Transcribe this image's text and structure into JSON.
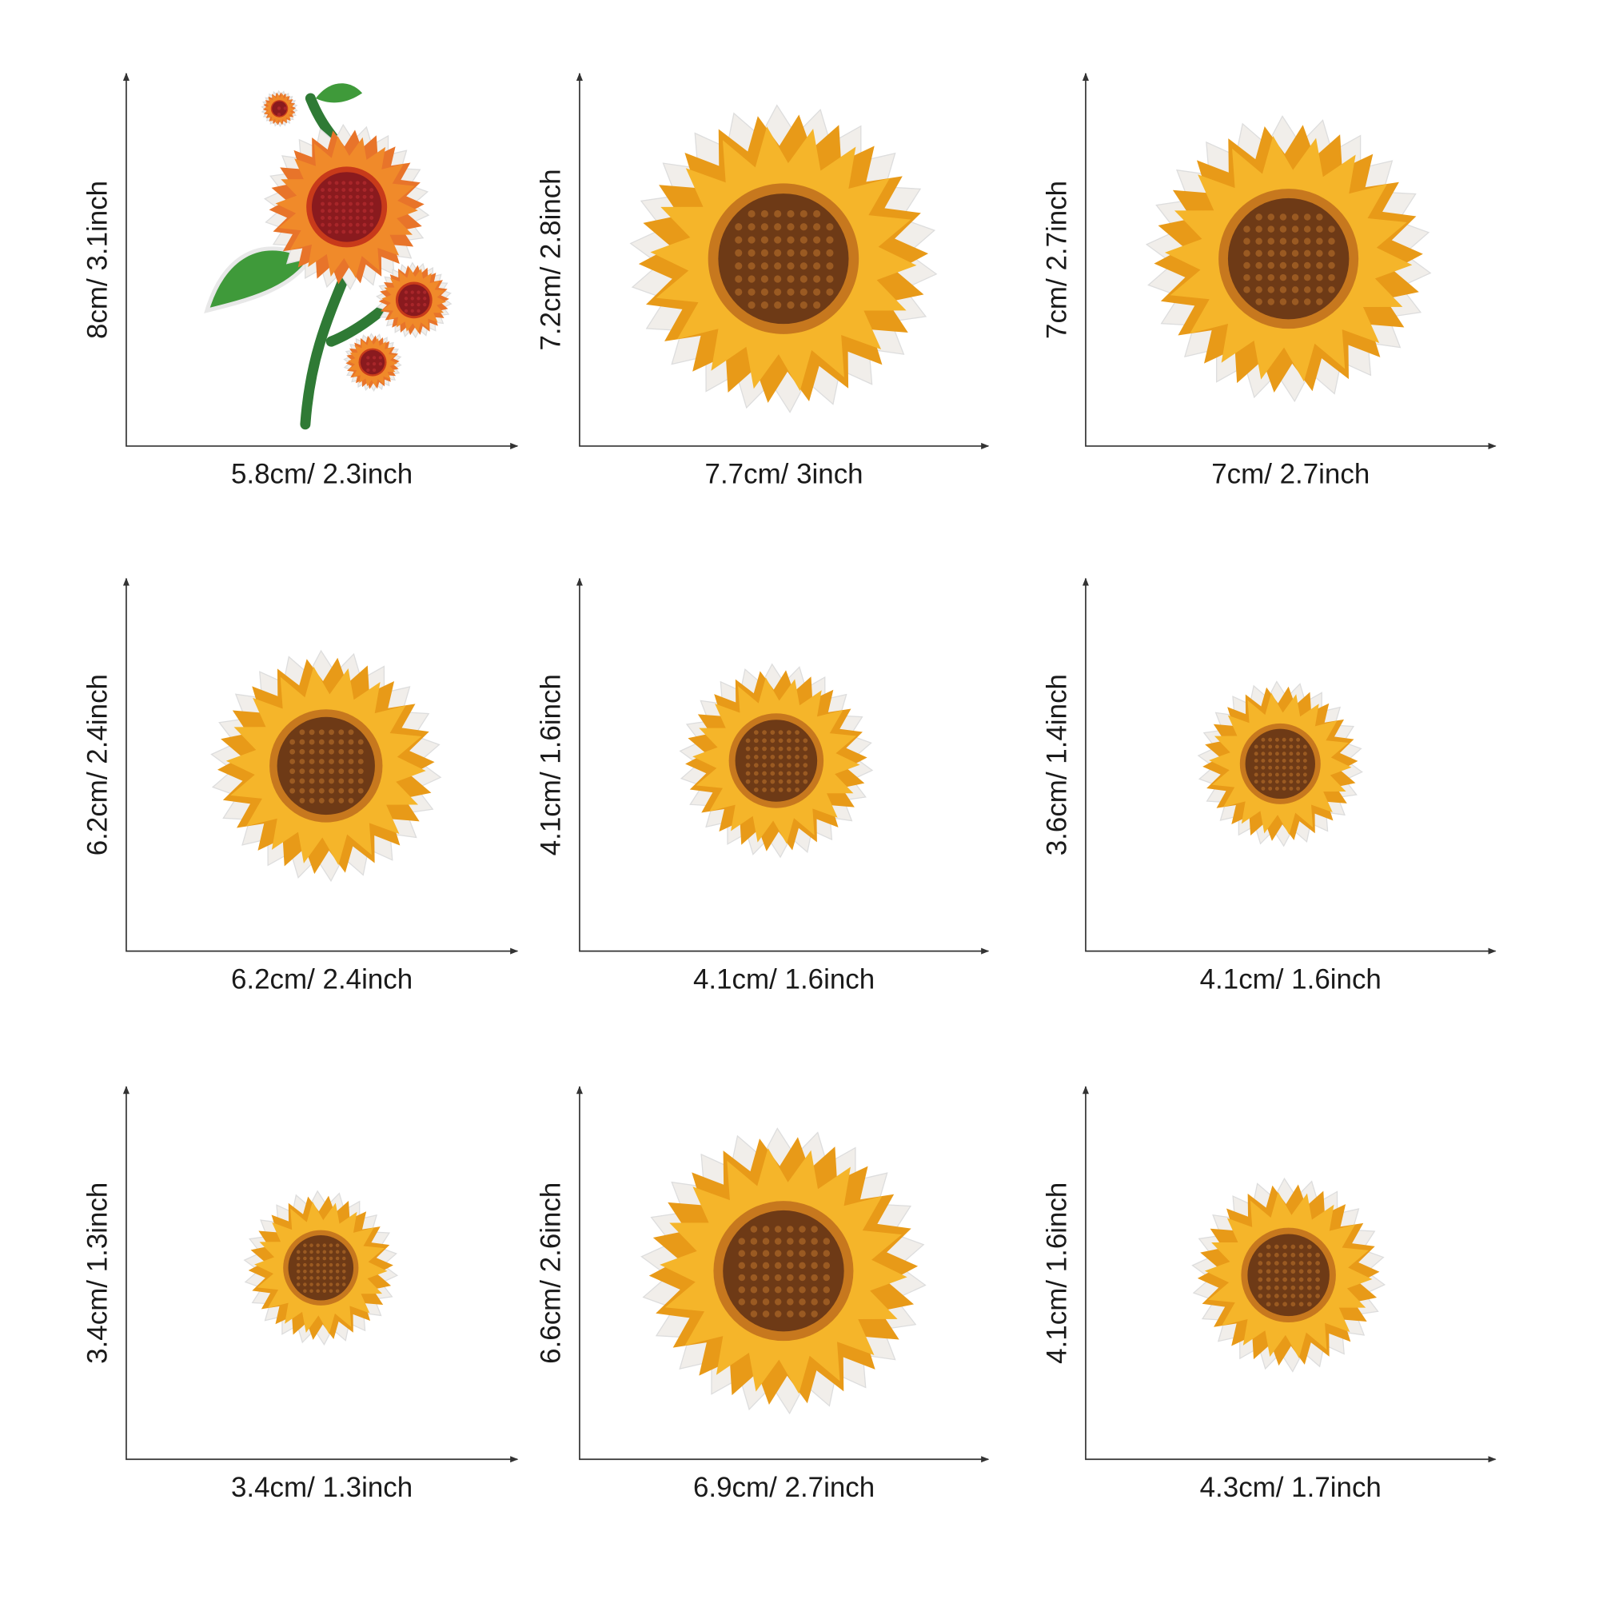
{
  "panels": [
    {
      "height_label": "8cm/ 3.1inch",
      "width_label": "5.8cm/ 2.3inch"
    },
    {
      "height_label": "7.2cm/ 2.8inch",
      "width_label": "7.7cm/ 3inch"
    },
    {
      "height_label": "7cm/ 2.7inch",
      "width_label": "7cm/ 2.7inch"
    },
    {
      "height_label": "6.2cm/ 2.4inch",
      "width_label": "6.2cm/ 2.4inch"
    },
    {
      "height_label": "4.1cm/ 1.6inch",
      "width_label": "4.1cm/ 1.6inch"
    },
    {
      "height_label": "3.6cm/ 1.4inch",
      "width_label": "4.1cm/ 1.6inch"
    },
    {
      "height_label": "3.4cm/ 1.3inch",
      "width_label": "3.4cm/ 1.3inch"
    },
    {
      "height_label": "6.6cm/ 2.6inch",
      "width_label": "6.9cm/ 2.7inch"
    },
    {
      "height_label": "4.1cm/ 1.6inch",
      "width_label": "4.3cm/ 1.7inch"
    }
  ]
}
